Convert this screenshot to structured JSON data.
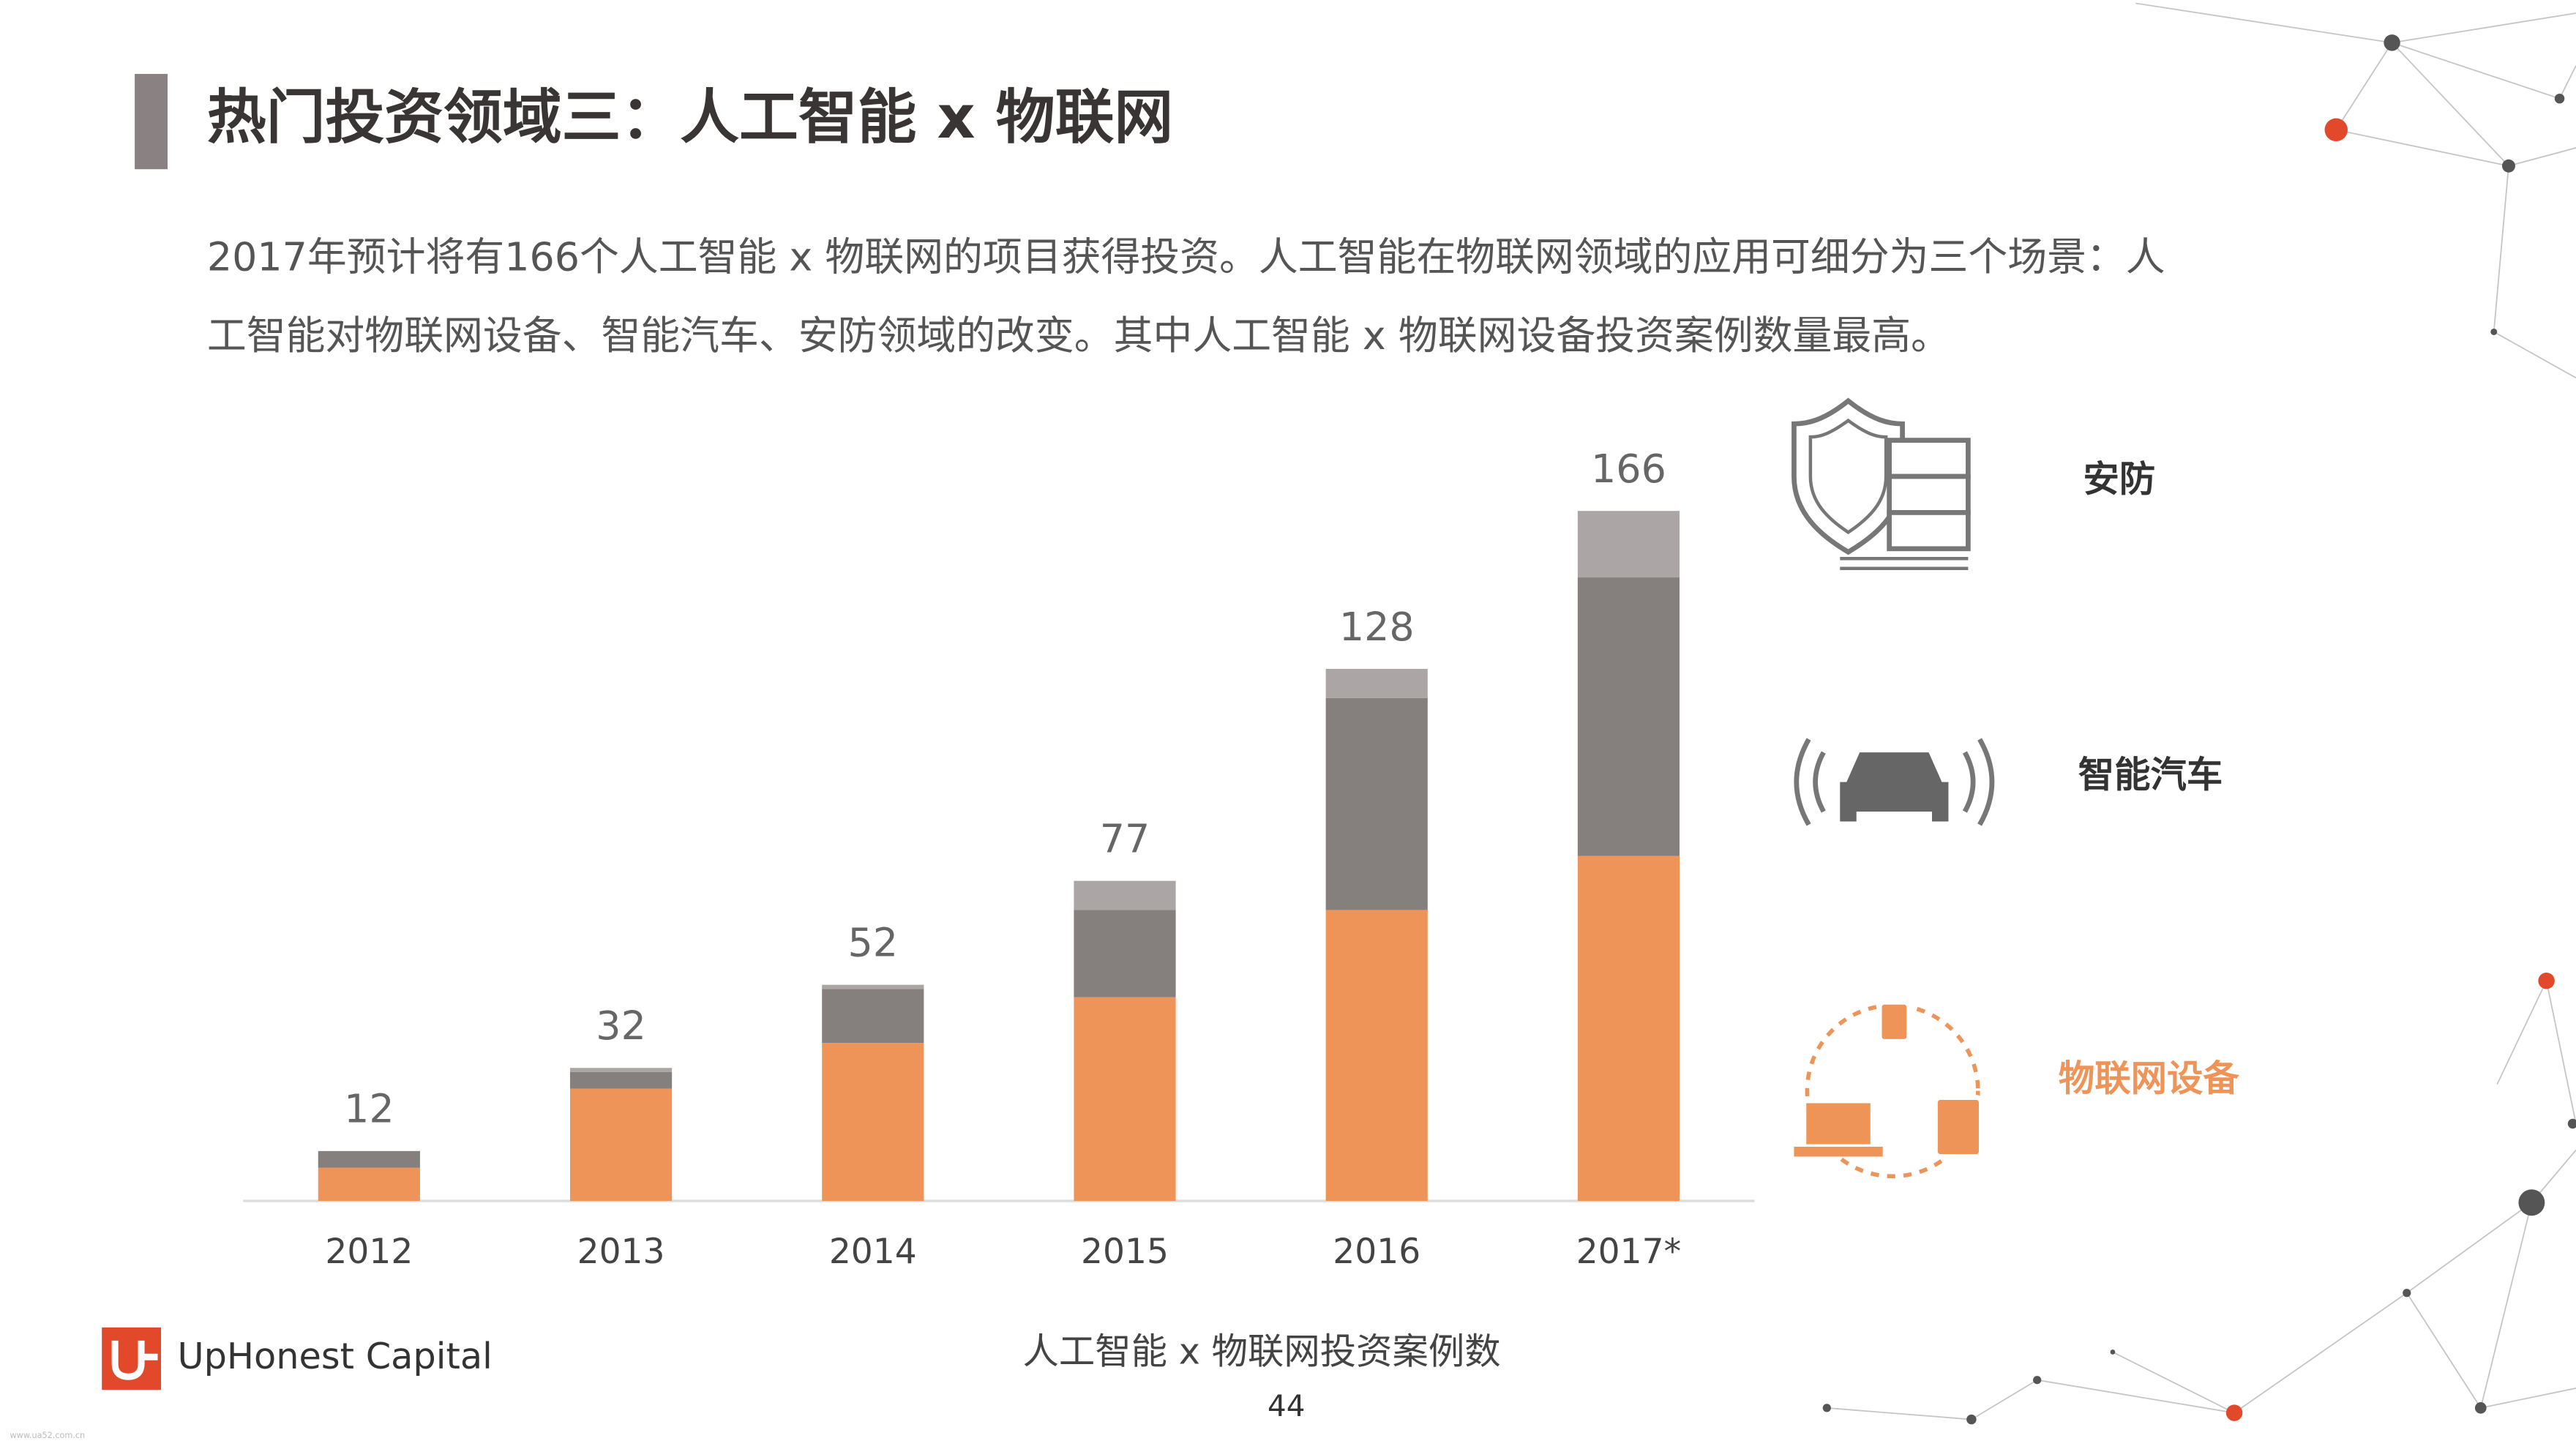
{
  "header": {
    "title": "热门投资领域三：人工智能 x 物联网"
  },
  "description": [
    "2017年预计将有166个人工智能 x 物联网的项目获得投资。人工智能在物联网领域的应用可细分为三个场景：人",
    "工智能对物联网设备、智能汽车、安防领域的改变。其中人工智能 x 物联网设备投资案例数量最高。"
  ],
  "chart_data": {
    "type": "stacked_bar",
    "xlabel": "人工智能 x 物联网投资案例数",
    "categories": [
      "2012",
      "2013",
      "2014",
      "2015",
      "2016",
      "2017*"
    ],
    "totals": [
      12,
      32,
      52,
      77,
      128,
      166
    ],
    "series": [
      {
        "name": "物联网设备",
        "color": "#ef9459",
        "values": [
          8,
          27,
          38,
          49,
          70,
          83
        ]
      },
      {
        "name": "智能汽车",
        "color": "#857f7d",
        "values": [
          4,
          4,
          13,
          21,
          51,
          67
        ]
      },
      {
        "name": "安防",
        "color": "#aba6a5",
        "values": [
          0,
          1,
          1,
          7,
          7,
          16
        ]
      }
    ]
  },
  "footer": {
    "logo": "UpHonest Capital",
    "page": "44",
    "watermark": "www.ua52.com.cn"
  }
}
